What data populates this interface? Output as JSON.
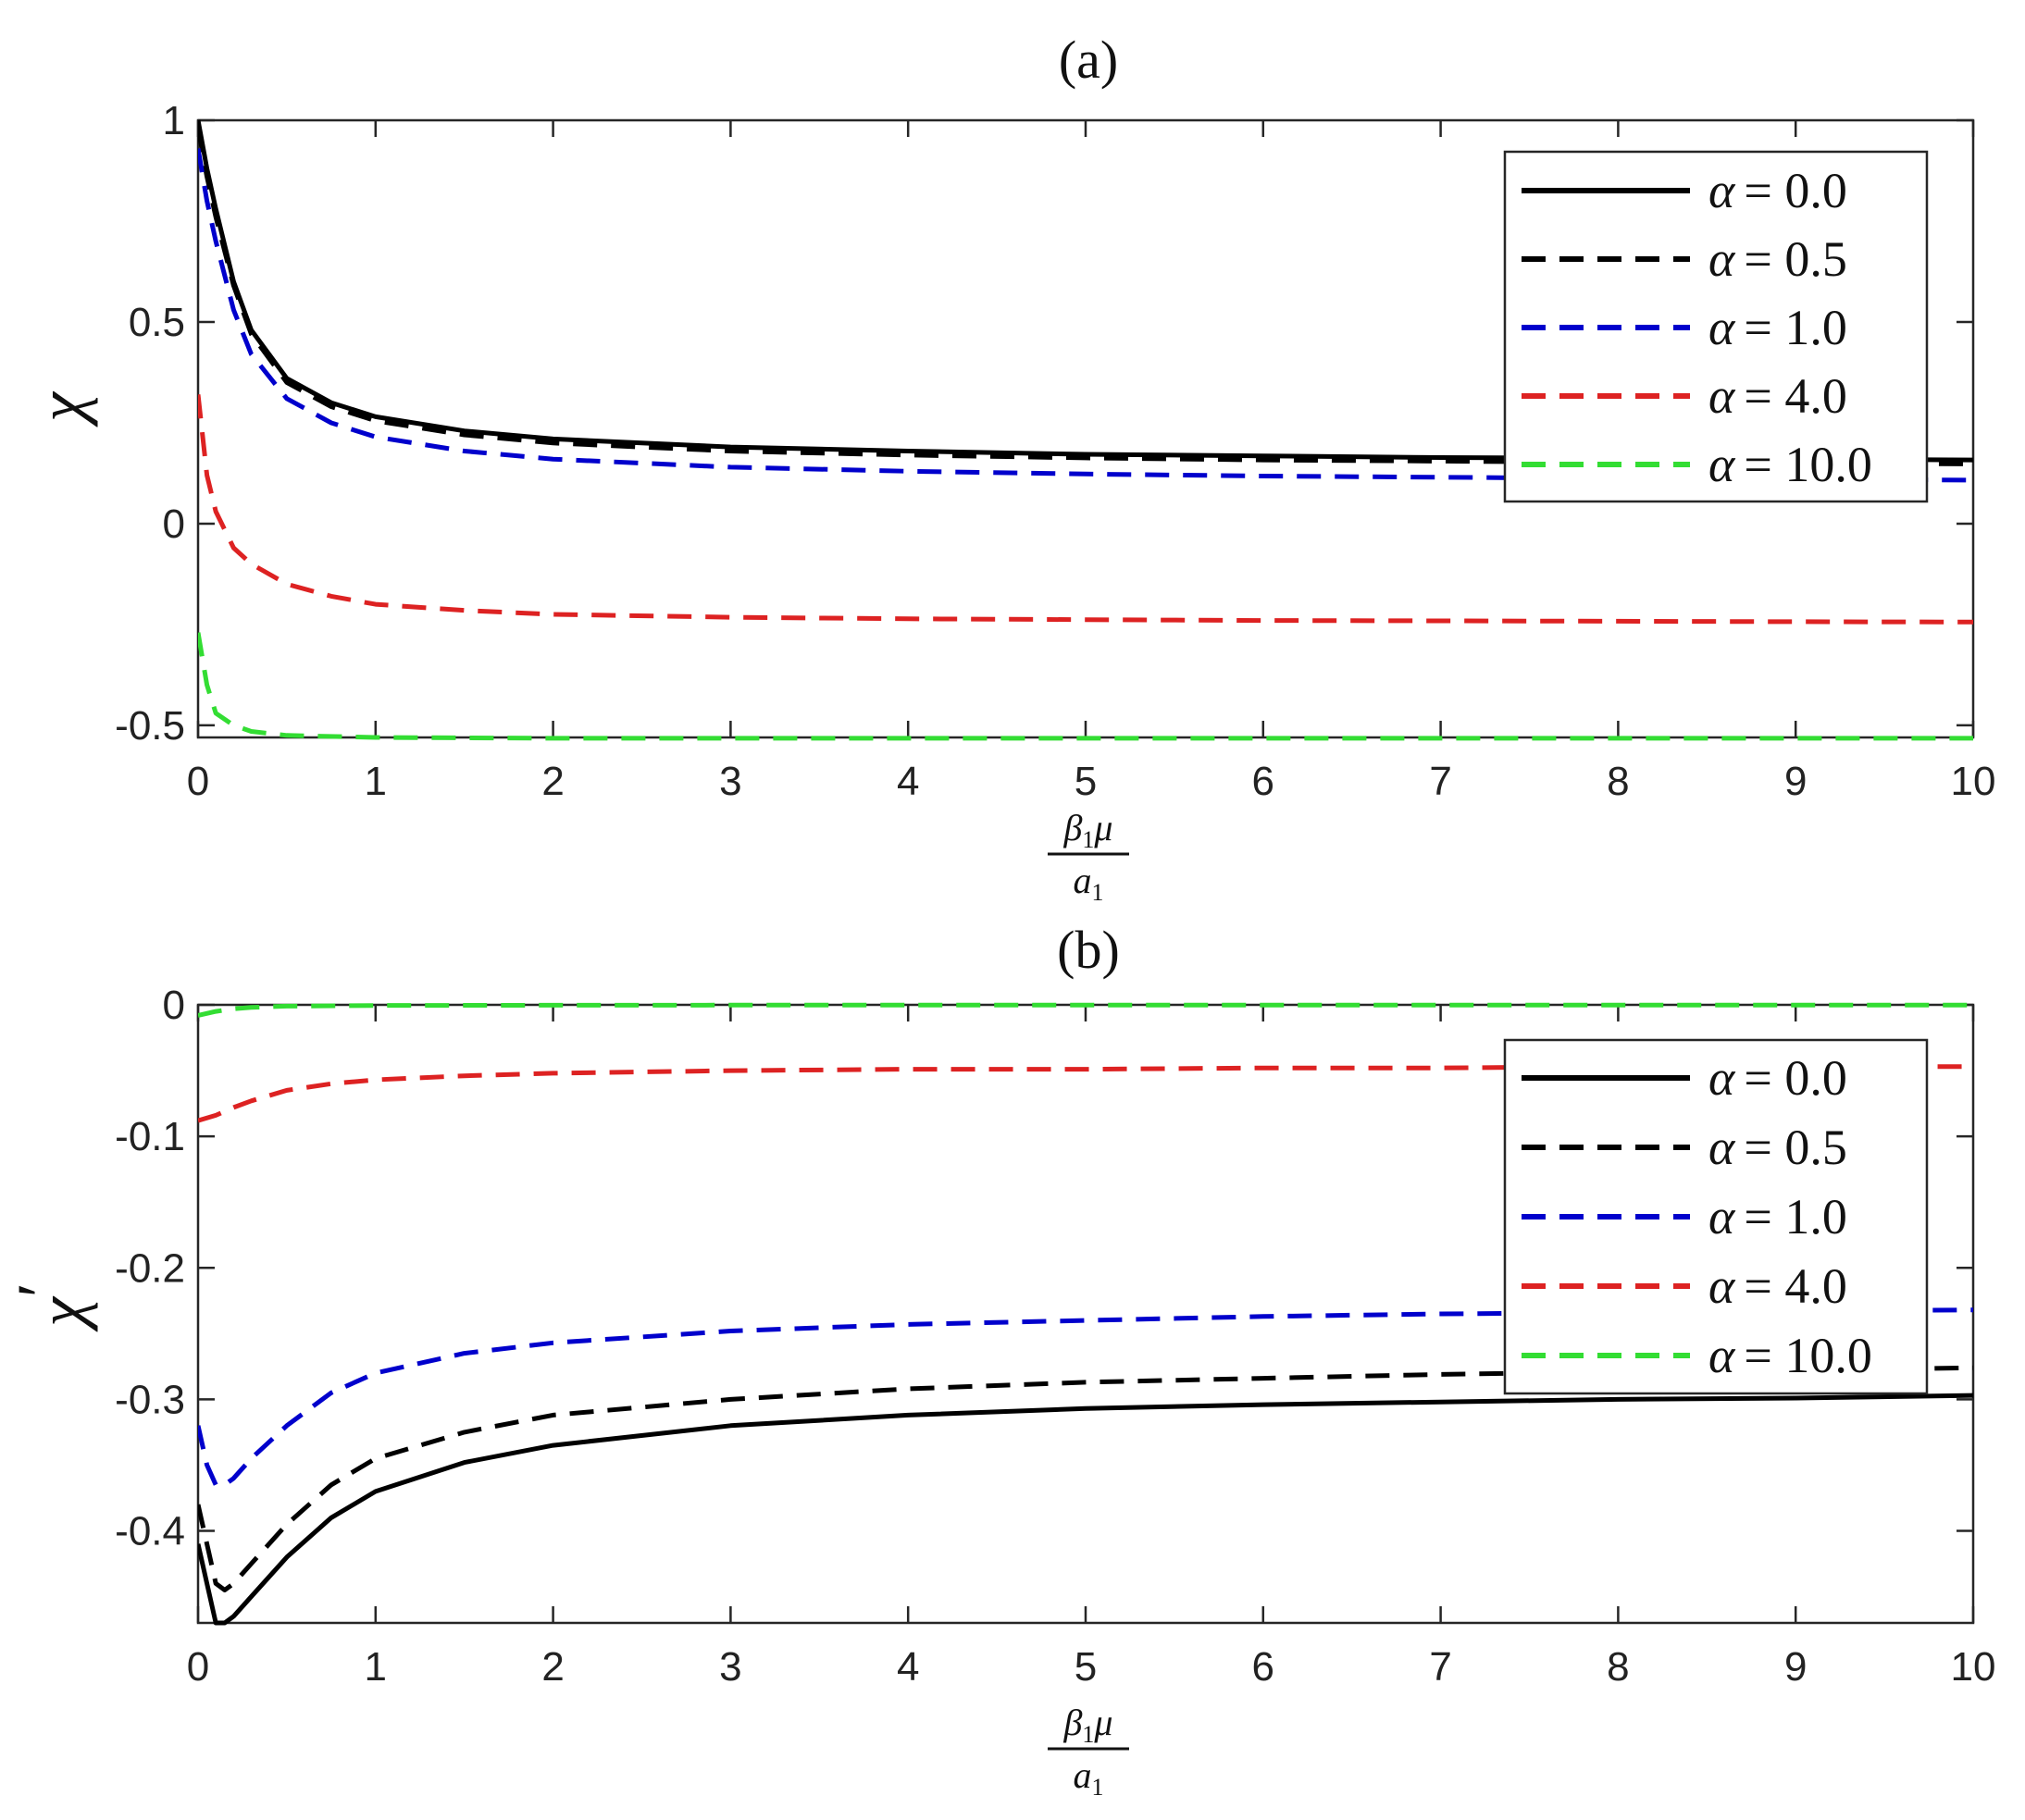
{
  "figure": {
    "panels": [
      {
        "title": "(a)",
        "ylabel": "χ",
        "ylabel_prime": "",
        "xlabel": {
          "num_symbol": "β",
          "num_sub": "1",
          "num_tail": "μ",
          "den_symbol": "a",
          "den_sub": "1"
        }
      },
      {
        "title": "(b)",
        "ylabel": "χ",
        "ylabel_prime": "′",
        "xlabel": {
          "num_symbol": "β",
          "num_sub": "1",
          "num_tail": "μ",
          "den_symbol": "a",
          "den_sub": "1"
        }
      }
    ]
  },
  "chart_data": [
    {
      "type": "line",
      "title": "(a)",
      "xlabel": "β1μ / a1",
      "ylabel": "χ",
      "xlim": [
        0,
        10
      ],
      "ylim": [
        -0.53,
        1.0
      ],
      "xticks": [
        0,
        1,
        2,
        3,
        4,
        5,
        6,
        7,
        8,
        9,
        10
      ],
      "xtick_labels": [
        "0",
        "1",
        "2",
        "3",
        "4",
        "5",
        "6",
        "7",
        "8",
        "9",
        "10"
      ],
      "yticks": [
        1,
        0.5,
        0,
        -0.5
      ],
      "ytick_labels": [
        "1",
        "0.5",
        "0",
        "-0.5"
      ],
      "legend": "top-right",
      "series": [
        {
          "name": "α = 0.0",
          "label_prefix": "α",
          "label_eq": "= 0.0",
          "color": "#000000",
          "dash": "solid",
          "x": [
            0,
            0.05,
            0.1,
            0.2,
            0.3,
            0.5,
            0.75,
            1,
            1.5,
            2,
            3,
            4,
            5,
            6,
            7,
            8,
            9,
            10
          ],
          "y": [
            1.0,
            0.88,
            0.78,
            0.6,
            0.48,
            0.36,
            0.3,
            0.265,
            0.23,
            0.21,
            0.19,
            0.18,
            0.172,
            0.168,
            0.164,
            0.162,
            0.16,
            0.158
          ]
        },
        {
          "name": "α = 0.5",
          "label_prefix": "α",
          "label_eq": "= 0.5",
          "color": "#000000",
          "dash": "dashed",
          "x": [
            0,
            0.05,
            0.1,
            0.2,
            0.3,
            0.5,
            0.75,
            1,
            1.5,
            2,
            3,
            4,
            5,
            6,
            7,
            8,
            9,
            10
          ],
          "y": [
            0.98,
            0.86,
            0.76,
            0.59,
            0.47,
            0.35,
            0.29,
            0.255,
            0.22,
            0.2,
            0.18,
            0.17,
            0.163,
            0.158,
            0.155,
            0.152,
            0.15,
            0.148
          ]
        },
        {
          "name": "α = 1.0",
          "label_prefix": "α",
          "label_eq": "= 1.0",
          "color": "#0000cc",
          "dash": "dashed",
          "x": [
            0,
            0.05,
            0.1,
            0.2,
            0.3,
            0.5,
            0.75,
            1,
            1.5,
            2,
            3,
            4,
            5,
            6,
            7,
            8,
            9,
            10
          ],
          "y": [
            0.93,
            0.8,
            0.7,
            0.53,
            0.42,
            0.31,
            0.25,
            0.215,
            0.18,
            0.16,
            0.14,
            0.13,
            0.123,
            0.118,
            0.115,
            0.112,
            0.11,
            0.108
          ]
        },
        {
          "name": "α = 4.0",
          "label_prefix": "α",
          "label_eq": "= 4.0",
          "color": "#dd2222",
          "dash": "dashed",
          "x": [
            0,
            0.05,
            0.1,
            0.2,
            0.3,
            0.5,
            0.75,
            1,
            1.5,
            2,
            3,
            4,
            5,
            6,
            7,
            8,
            9,
            10
          ],
          "y": [
            0.32,
            0.12,
            0.03,
            -0.06,
            -0.1,
            -0.15,
            -0.18,
            -0.2,
            -0.215,
            -0.225,
            -0.232,
            -0.236,
            -0.238,
            -0.24,
            -0.241,
            -0.242,
            -0.243,
            -0.244
          ]
        },
        {
          "name": "α = 10.0",
          "label_prefix": "α",
          "label_eq": "= 10.0",
          "color": "#33dd33",
          "dash": "dashed",
          "x": [
            0,
            0.05,
            0.1,
            0.2,
            0.3,
            0.5,
            1,
            2,
            3,
            4,
            5,
            6,
            7,
            8,
            9,
            10
          ],
          "y": [
            -0.27,
            -0.4,
            -0.47,
            -0.5,
            -0.515,
            -0.525,
            -0.53,
            -0.532,
            -0.532,
            -0.532,
            -0.532,
            -0.532,
            -0.532,
            -0.532,
            -0.532,
            -0.532
          ]
        }
      ]
    },
    {
      "type": "line",
      "title": "(b)",
      "xlabel": "β1μ / a1",
      "ylabel": "χ′",
      "xlim": [
        0,
        10
      ],
      "ylim": [
        -0.47,
        0.0
      ],
      "xticks": [
        0,
        1,
        2,
        3,
        4,
        5,
        6,
        7,
        8,
        9,
        10
      ],
      "xtick_labels": [
        "0",
        "1",
        "2",
        "3",
        "4",
        "5",
        "6",
        "7",
        "8",
        "9",
        "10"
      ],
      "yticks": [
        0,
        -0.1,
        -0.2,
        -0.3,
        -0.4
      ],
      "ytick_labels": [
        "0",
        "-0.1",
        "-0.2",
        "-0.3",
        "-0.4"
      ],
      "legend": "right",
      "series": [
        {
          "name": "α = 0.0",
          "label_prefix": "α",
          "label_eq": "= 0.0",
          "color": "#000000",
          "dash": "solid",
          "x": [
            0,
            0.05,
            0.1,
            0.15,
            0.2,
            0.3,
            0.5,
            0.75,
            1,
            1.5,
            2,
            3,
            4,
            5,
            6,
            7,
            8,
            9,
            10
          ],
          "y": [
            -0.41,
            -0.44,
            -0.47,
            -0.47,
            -0.465,
            -0.45,
            -0.42,
            -0.39,
            -0.37,
            -0.348,
            -0.335,
            -0.32,
            -0.312,
            -0.307,
            -0.304,
            -0.302,
            -0.3,
            -0.299,
            -0.297
          ]
        },
        {
          "name": "α = 0.5",
          "label_prefix": "α",
          "label_eq": "= 0.5",
          "color": "#000000",
          "dash": "dashed",
          "x": [
            0,
            0.05,
            0.1,
            0.15,
            0.2,
            0.3,
            0.5,
            0.75,
            1,
            1.5,
            2,
            3,
            4,
            5,
            6,
            7,
            8,
            9,
            10
          ],
          "y": [
            -0.38,
            -0.41,
            -0.44,
            -0.445,
            -0.44,
            -0.425,
            -0.395,
            -0.365,
            -0.345,
            -0.325,
            -0.312,
            -0.3,
            -0.292,
            -0.287,
            -0.284,
            -0.281,
            -0.279,
            -0.278,
            -0.276
          ]
        },
        {
          "name": "α = 1.0",
          "label_prefix": "α",
          "label_eq": "= 1.0",
          "color": "#0000cc",
          "dash": "dashed",
          "x": [
            0,
            0.05,
            0.1,
            0.15,
            0.2,
            0.3,
            0.5,
            0.75,
            1,
            1.5,
            2,
            3,
            4,
            5,
            6,
            7,
            8,
            9,
            10
          ],
          "y": [
            -0.32,
            -0.35,
            -0.365,
            -0.365,
            -0.36,
            -0.345,
            -0.32,
            -0.295,
            -0.28,
            -0.265,
            -0.257,
            -0.248,
            -0.243,
            -0.24,
            -0.237,
            -0.235,
            -0.234,
            -0.233,
            -0.232
          ]
        },
        {
          "name": "α = 4.0",
          "label_prefix": "α",
          "label_eq": "= 4.0",
          "color": "#dd2222",
          "dash": "dashed",
          "x": [
            0,
            0.1,
            0.2,
            0.3,
            0.5,
            0.75,
            1,
            1.5,
            2,
            3,
            4,
            5,
            6,
            7,
            8,
            9,
            10
          ],
          "y": [
            -0.088,
            -0.084,
            -0.078,
            -0.073,
            -0.065,
            -0.06,
            -0.057,
            -0.054,
            -0.052,
            -0.05,
            -0.049,
            -0.049,
            -0.048,
            -0.048,
            -0.047,
            -0.047,
            -0.047
          ]
        },
        {
          "name": "α = 10.0",
          "label_prefix": "α",
          "label_eq": "= 10.0",
          "color": "#33dd33",
          "dash": "dashed",
          "x": [
            0,
            0.1,
            0.2,
            0.3,
            0.5,
            1,
            2,
            3,
            4,
            5,
            6,
            7,
            8,
            9,
            10
          ],
          "y": [
            -0.008,
            -0.005,
            -0.003,
            -0.002,
            -0.001,
            -0.0005,
            -0.0003,
            -0.0002,
            -0.0002,
            -0.0002,
            -0.0002,
            -0.0002,
            -0.0002,
            -0.0002,
            -0.0002
          ]
        }
      ]
    }
  ]
}
